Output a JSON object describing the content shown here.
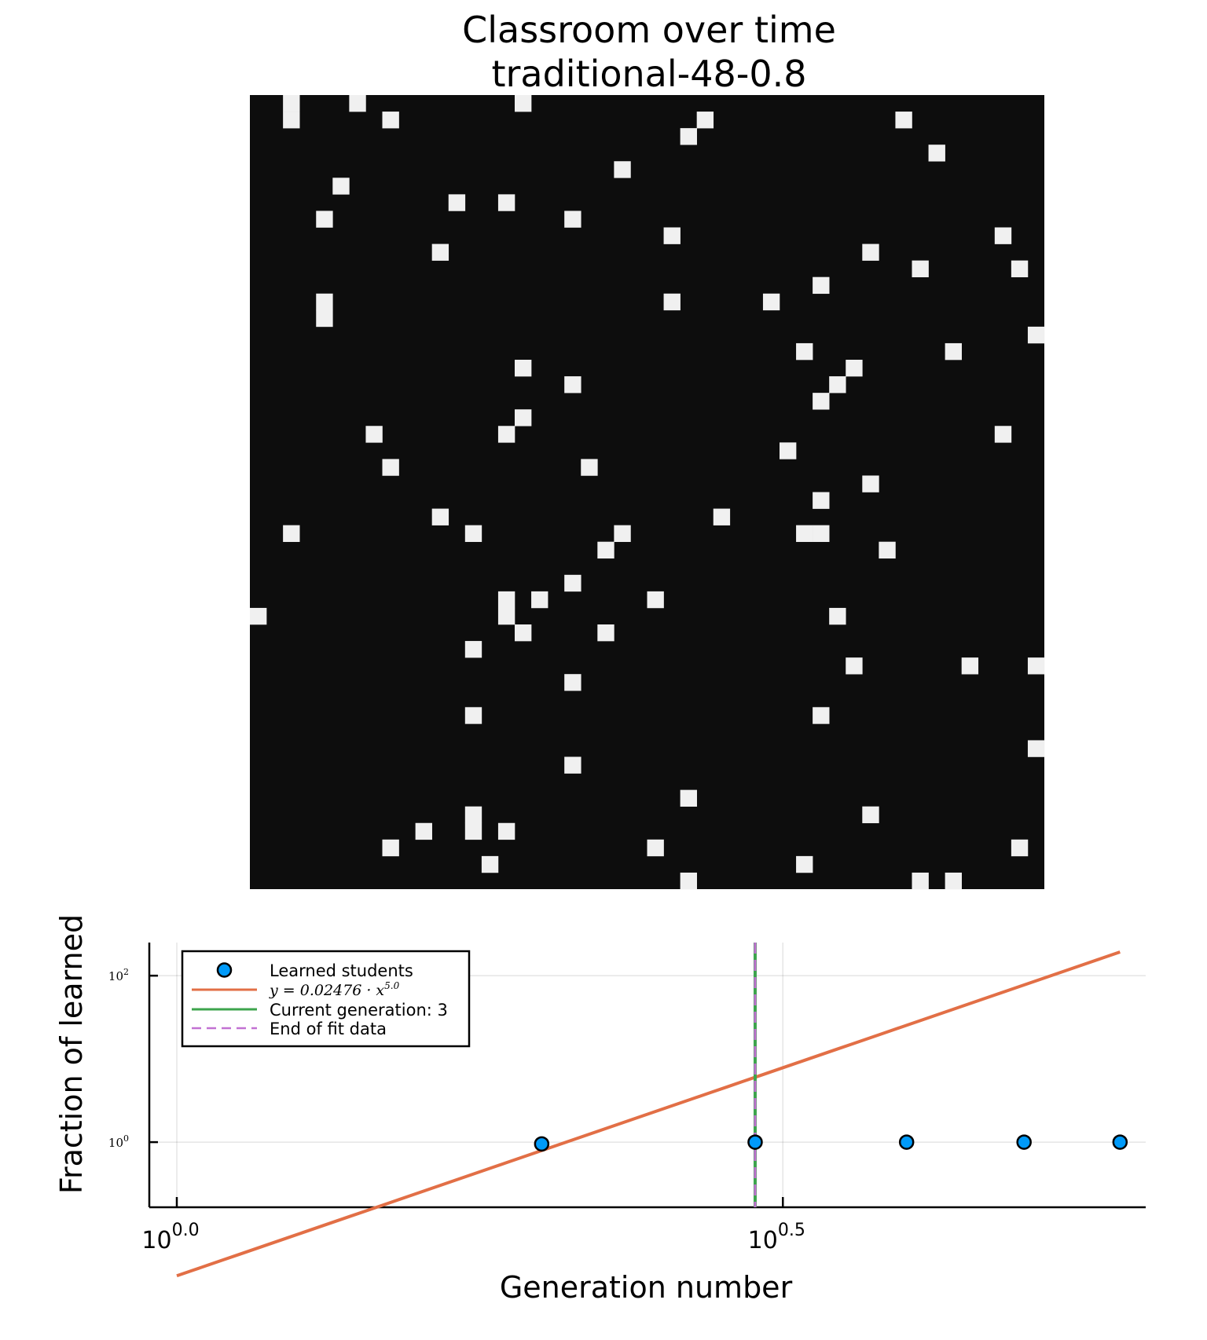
{
  "title_line1": "Classroom over time",
  "title_line2": "traditional-48-0.8",
  "chart_data": [
    {
      "type": "heatmap",
      "grid_size": [
        48,
        48
      ],
      "colors": {
        "learned": "#f0f0f0",
        "not_learned": "#0d0d0d"
      },
      "cells": [
        [
          2,
          0
        ],
        [
          2,
          1
        ],
        [
          6,
          0
        ],
        [
          16,
          0
        ],
        [
          8,
          1
        ],
        [
          27,
          1
        ],
        [
          39,
          1
        ],
        [
          26,
          2
        ],
        [
          41,
          3
        ],
        [
          22,
          4
        ],
        [
          5,
          5
        ],
        [
          12,
          6
        ],
        [
          15,
          6
        ],
        [
          4,
          7
        ],
        [
          19,
          7
        ],
        [
          25,
          8
        ],
        [
          45,
          8
        ],
        [
          11,
          9
        ],
        [
          37,
          9
        ],
        [
          40,
          10
        ],
        [
          46,
          10
        ],
        [
          34,
          11
        ],
        [
          4,
          12
        ],
        [
          4,
          13
        ],
        [
          25,
          12
        ],
        [
          31,
          12
        ],
        [
          47,
          14
        ],
        [
          33,
          15
        ],
        [
          42,
          15
        ],
        [
          16,
          16
        ],
        [
          36,
          16
        ],
        [
          19,
          17
        ],
        [
          35,
          17
        ],
        [
          34,
          18
        ],
        [
          16,
          19
        ],
        [
          15,
          20
        ],
        [
          7,
          20
        ],
        [
          45,
          20
        ],
        [
          32,
          21
        ],
        [
          8,
          22
        ],
        [
          20,
          22
        ],
        [
          37,
          23
        ],
        [
          34,
          24
        ],
        [
          11,
          25
        ],
        [
          28,
          25
        ],
        [
          2,
          26
        ],
        [
          13,
          26
        ],
        [
          22,
          26
        ],
        [
          33,
          26
        ],
        [
          34,
          26
        ],
        [
          21,
          27
        ],
        [
          38,
          27
        ],
        [
          19,
          29
        ],
        [
          15,
          30
        ],
        [
          15,
          31
        ],
        [
          17,
          30
        ],
        [
          24,
          30
        ],
        [
          0,
          31
        ],
        [
          35,
          31
        ],
        [
          16,
          32
        ],
        [
          21,
          32
        ],
        [
          13,
          33
        ],
        [
          36,
          34
        ],
        [
          43,
          34
        ],
        [
          47,
          34
        ],
        [
          19,
          35
        ],
        [
          13,
          37
        ],
        [
          34,
          37
        ],
        [
          19,
          40
        ],
        [
          47,
          39
        ],
        [
          26,
          42
        ],
        [
          37,
          43
        ],
        [
          13,
          43
        ],
        [
          13,
          44
        ],
        [
          10,
          44
        ],
        [
          15,
          44
        ],
        [
          8,
          45
        ],
        [
          24,
          45
        ],
        [
          46,
          45
        ],
        [
          14,
          46
        ],
        [
          33,
          46
        ],
        [
          26,
          47
        ],
        [
          40,
          47
        ],
        [
          42,
          47
        ]
      ]
    },
    {
      "type": "scatter",
      "xlabel": "Generation number",
      "ylabel": "Fraction of learned",
      "xscale": "log10",
      "yscale": "log10",
      "xlim": [
        1.0,
        6.3
      ],
      "ylim": [
        0.165,
        250
      ],
      "grid": true,
      "legend_position": "top-left",
      "xticks": [
        {
          "base": "10",
          "exp": "0.0",
          "value": 1.0
        },
        {
          "base": "10",
          "exp": "0.5",
          "value": 3.1623
        }
      ],
      "yticks": [
        {
          "base": "10",
          "exp": "0",
          "value": 1
        },
        {
          "base": "10",
          "exp": "2",
          "value": 100
        }
      ],
      "series": [
        {
          "name": "Learned students",
          "kind": "scatter",
          "color": "#009af9",
          "x": [
            2,
            3,
            4,
            5,
            6
          ],
          "y": [
            0.9523,
            1.0,
            1.0,
            1.0,
            1.0
          ]
        },
        {
          "name": "y = 0.02476 · x^5.0",
          "kind": "line",
          "color": "#e26f46",
          "formula": {
            "coefficient": 0.02476,
            "exponent": 5.0
          },
          "x_range": [
            1.0,
            6.0
          ]
        },
        {
          "name": "Current generation: 3",
          "kind": "vline",
          "color": "#3da44d",
          "x": 3
        },
        {
          "name": "End of fit data",
          "kind": "vline-dashed",
          "color": "#c271d2",
          "x": 3
        }
      ],
      "legend": {
        "scatter_label": "Learned students",
        "fit_label_prefix": "y = 0.02476 · x",
        "fit_label_exp": "5.0",
        "current_label": "Current generation: 3",
        "end_label": "End of fit data"
      }
    }
  ]
}
